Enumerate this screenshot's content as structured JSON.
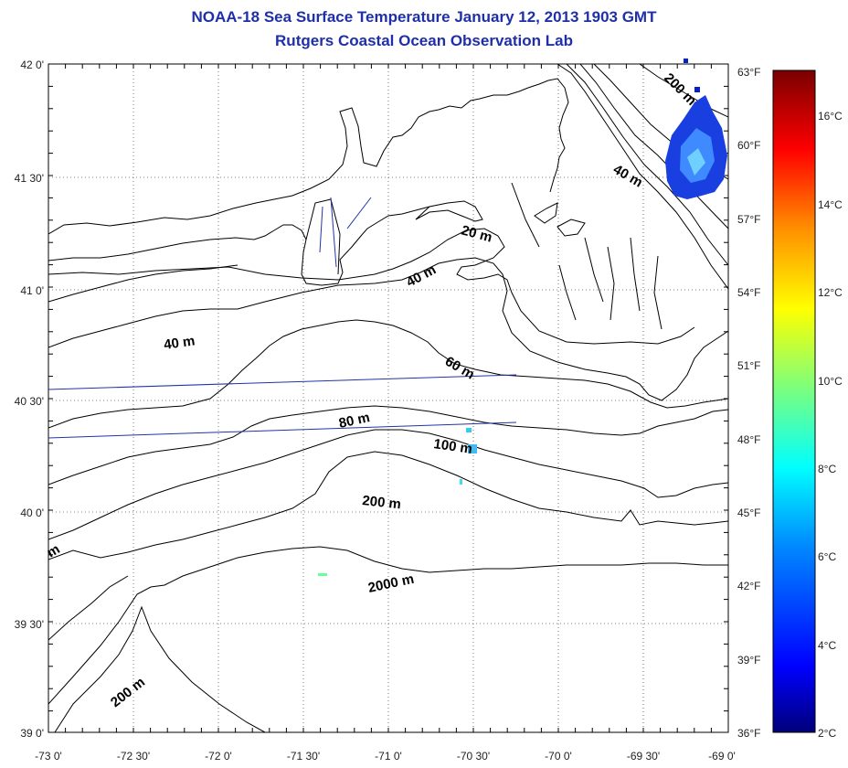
{
  "header": {
    "title": "NOAA-18 Sea Surface Temperature January 12, 2013 1903 GMT",
    "subtitle": "Rutgers Coastal Ocean Observation Lab"
  },
  "axes": {
    "lat_labels": [
      "42 0'",
      "41 30'",
      "41 0'",
      "40 30'",
      "40 0'",
      "39 30'",
      "39 0'"
    ],
    "lon_labels": [
      "-73 0'",
      "-72 30'",
      "-72 0'",
      "-71 30'",
      "-71 0'",
      "-70 30'",
      "-70 0'",
      "-69 30'",
      "-69 0'"
    ]
  },
  "depth_labels": [
    "200 m",
    "40 m",
    "20 m",
    "40 m",
    "40 m",
    "60 m",
    "80 m",
    "100 m",
    "200 m",
    "2000 m",
    "200 m",
    "m"
  ],
  "colorbar": {
    "fahrenheit_labels": [
      "63°F",
      "60°F",
      "57°F",
      "54°F",
      "51°F",
      "48°F",
      "45°F",
      "42°F",
      "39°F",
      "36°F"
    ],
    "celsius_labels": [
      "16°C",
      "14°C",
      "12°C",
      "10°C",
      "8°C",
      "6°C",
      "4°C",
      "2°C"
    ],
    "colors": [
      "#00008b",
      "#0000ff",
      "#0080ff",
      "#00ffff",
      "#80ff80",
      "#ffff00",
      "#ff8000",
      "#ff0000",
      "#800000"
    ]
  },
  "sst_patch_color": "#1a3fe0"
}
